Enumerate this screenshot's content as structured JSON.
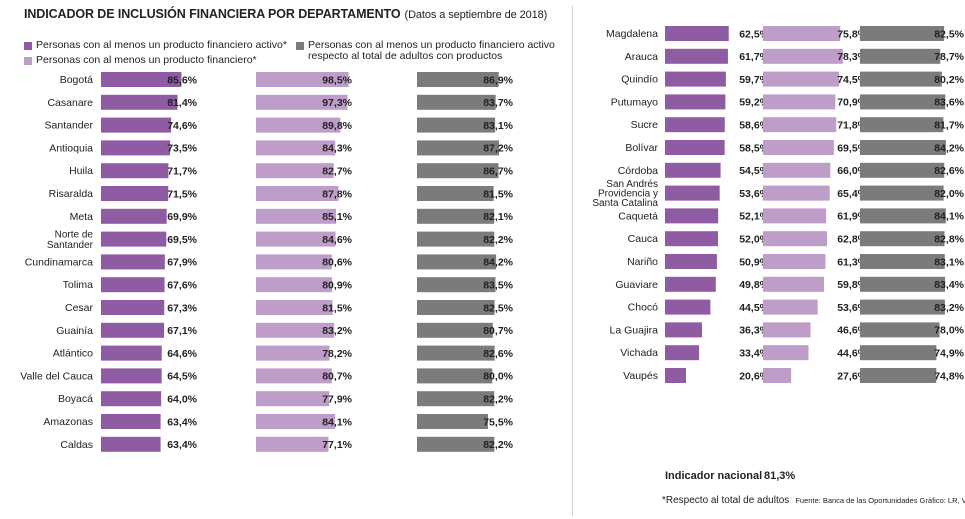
{
  "title": "INDICADOR DE INCLUSIÓN FINANCIERA POR DEPARTAMENTO",
  "subtitle": "(Datos a septiembre de 2018)",
  "legend": {
    "active": "Personas con al menos un producto financiero activo*",
    "any": "Personas con al menos un producto financiero*",
    "active_of_holders_line1": "Personas con al menos un producto financiero activo",
    "active_of_holders_line2": "respecto al total de adultos con productos"
  },
  "colors": {
    "active": "#8f5ba2",
    "any": "#bf9dc9",
    "active_of_holders": "#7b7b7b"
  },
  "national": {
    "label": "Indicador nacional",
    "value": "81,3%"
  },
  "footnote": "*Respecto al total de adultos",
  "source": "Fuente: Banca de las Oportunidades  Gráfico: LR, VT",
  "chart_data": {
    "type": "bar",
    "value_format": "percent",
    "series": [
      {
        "name": "Personas con al menos un producto financiero activo*",
        "key": "active"
      },
      {
        "name": "Personas con al menos un producto financiero*",
        "key": "any"
      },
      {
        "name": "Personas con al menos un producto financiero activo respecto al total de adultos con productos",
        "key": "active_of_holders"
      }
    ],
    "rows": [
      {
        "label": [
          "Bogotá"
        ],
        "active": 85.6,
        "any": 98.5,
        "active_of_holders": 86.9
      },
      {
        "label": [
          "Casanare"
        ],
        "active": 81.4,
        "any": 97.3,
        "active_of_holders": 83.7
      },
      {
        "label": [
          "Santander"
        ],
        "active": 74.6,
        "any": 89.8,
        "active_of_holders": 83.1
      },
      {
        "label": [
          "Antioquia"
        ],
        "active": 73.5,
        "any": 84.3,
        "active_of_holders": 87.2
      },
      {
        "label": [
          "Huila"
        ],
        "active": 71.7,
        "any": 82.7,
        "active_of_holders": 86.7
      },
      {
        "label": [
          "Risaralda"
        ],
        "active": 71.5,
        "any": 87.8,
        "active_of_holders": 81.5
      },
      {
        "label": [
          "Meta"
        ],
        "active": 69.9,
        "any": 85.1,
        "active_of_holders": 82.1
      },
      {
        "label": [
          "Norte de",
          "Santander"
        ],
        "active": 69.5,
        "any": 84.6,
        "active_of_holders": 82.2
      },
      {
        "label": [
          "Cundinamarca"
        ],
        "active": 67.9,
        "any": 80.6,
        "active_of_holders": 84.2
      },
      {
        "label": [
          "Tolima"
        ],
        "active": 67.6,
        "any": 80.9,
        "active_of_holders": 83.5
      },
      {
        "label": [
          "Cesar"
        ],
        "active": 67.3,
        "any": 81.5,
        "active_of_holders": 82.5
      },
      {
        "label": [
          "Guainía"
        ],
        "active": 67.1,
        "any": 83.2,
        "active_of_holders": 80.7
      },
      {
        "label": [
          "Atlántico"
        ],
        "active": 64.6,
        "any": 78.2,
        "active_of_holders": 82.6
      },
      {
        "label": [
          "Valle del Cauca"
        ],
        "active": 64.5,
        "any": 80.7,
        "active_of_holders": 80.0
      },
      {
        "label": [
          "Boyacá"
        ],
        "active": 64.0,
        "any": 77.9,
        "active_of_holders": 82.2
      },
      {
        "label": [
          "Amazonas"
        ],
        "active": 63.4,
        "any": 84.1,
        "active_of_holders": 75.5
      },
      {
        "label": [
          "Caldas"
        ],
        "active": 63.4,
        "any": 77.1,
        "active_of_holders": 82.2
      },
      {
        "label": [
          "Magdalena"
        ],
        "active": 62.5,
        "any": 75.8,
        "active_of_holders": 82.5
      },
      {
        "label": [
          "Arauca"
        ],
        "active": 61.7,
        "any": 78.3,
        "active_of_holders": 78.7
      },
      {
        "label": [
          "Quindío"
        ],
        "active": 59.7,
        "any": 74.5,
        "active_of_holders": 80.2
      },
      {
        "label": [
          "Putumayo"
        ],
        "active": 59.2,
        "any": 70.9,
        "active_of_holders": 83.6
      },
      {
        "label": [
          "Sucre"
        ],
        "active": 58.6,
        "any": 71.8,
        "active_of_holders": 81.7
      },
      {
        "label": [
          "Bolívar"
        ],
        "active": 58.5,
        "any": 69.5,
        "active_of_holders": 84.2
      },
      {
        "label": [
          "Córdoba"
        ],
        "active": 54.5,
        "any": 66.0,
        "active_of_holders": 82.6
      },
      {
        "label": [
          "San Andrés",
          "Providencia y",
          "Santa Catalina"
        ],
        "active": 53.6,
        "any": 65.4,
        "active_of_holders": 82.0
      },
      {
        "label": [
          "Caquetá"
        ],
        "active": 52.1,
        "any": 61.9,
        "active_of_holders": 84.1
      },
      {
        "label": [
          "Cauca"
        ],
        "active": 52.0,
        "any": 62.8,
        "active_of_holders": 82.8
      },
      {
        "label": [
          "Nariño"
        ],
        "active": 50.9,
        "any": 61.3,
        "active_of_holders": 83.1
      },
      {
        "label": [
          "Guaviare"
        ],
        "active": 49.8,
        "any": 59.8,
        "active_of_holders": 83.4
      },
      {
        "label": [
          "Chocó"
        ],
        "active": 44.5,
        "any": 53.6,
        "active_of_holders": 83.2
      },
      {
        "label": [
          "La Guajira"
        ],
        "active": 36.3,
        "any": 46.6,
        "active_of_holders": 78.0
      },
      {
        "label": [
          "Vichada"
        ],
        "active": 33.4,
        "any": 44.6,
        "active_of_holders": 74.9
      },
      {
        "label": [
          "Vaupés"
        ],
        "active": 20.6,
        "any": 27.6,
        "active_of_holders": 74.8
      }
    ]
  }
}
